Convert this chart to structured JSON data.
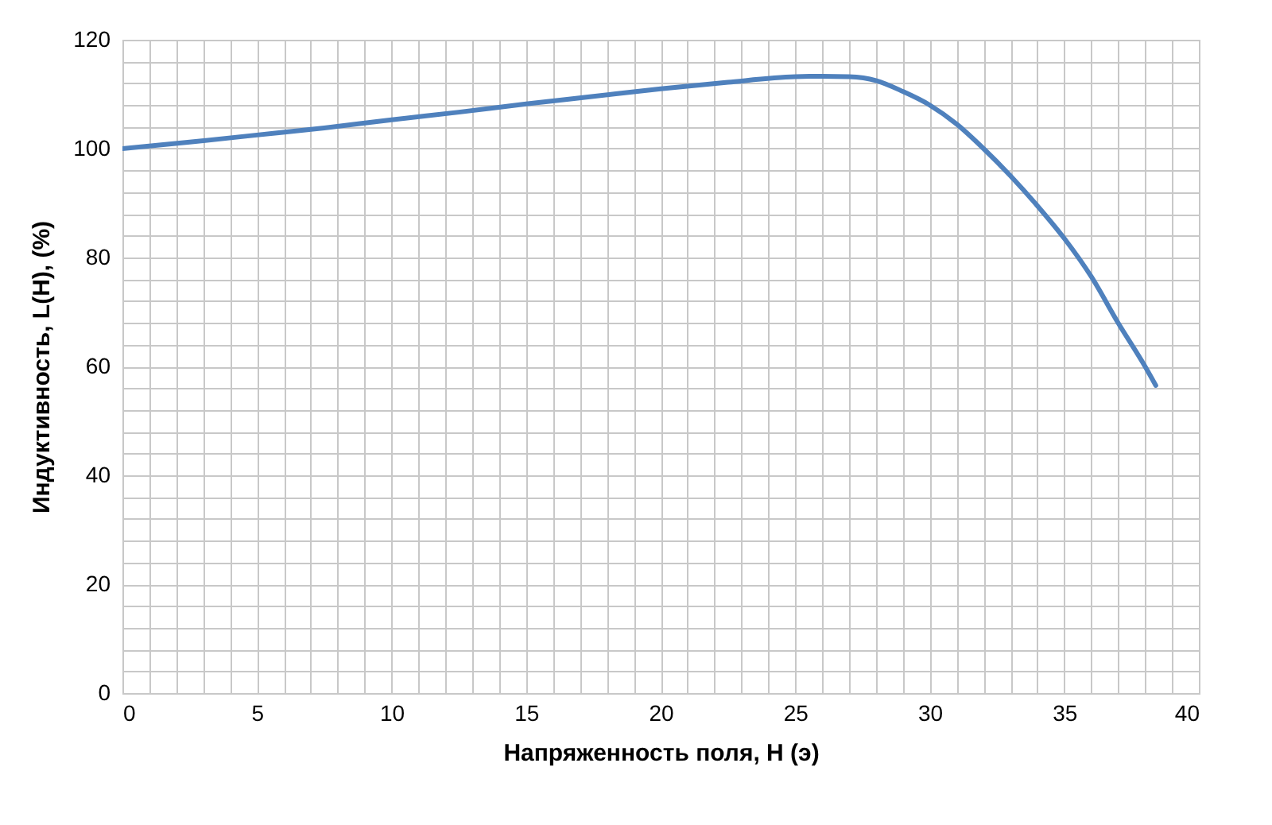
{
  "chart_data": {
    "type": "line",
    "xlabel": "Напряженность поля, H (э)",
    "ylabel": "Индуктивность, L(H), (%)",
    "x": [
      0,
      2.5,
      5,
      7.5,
      10,
      12.5,
      15,
      17.5,
      20,
      22.5,
      25,
      26,
      27,
      28,
      29,
      30,
      31,
      32,
      33,
      34,
      35,
      36,
      37,
      38,
      38.4
    ],
    "series": [
      {
        "color": "#4f81bd",
        "values": [
          100,
          101.2,
          102.5,
          103.8,
          105.3,
          106.7,
          108.2,
          109.6,
          111,
          112.2,
          113.2,
          113.3,
          113.2,
          112.5,
          110.5,
          108,
          104.5,
          100,
          95,
          89.5,
          83.5,
          76.5,
          68,
          60,
          56.5
        ]
      }
    ],
    "xlim": [
      0,
      40
    ],
    "ylim": [
      0,
      120
    ],
    "xticks": [
      0,
      {
        "value": 1,
        "label": null
      },
      {
        "value": 2,
        "label": null
      },
      {
        "value": 3,
        "label": null
      },
      {
        "value": 4,
        "label": null
      },
      5,
      {
        "value": 6,
        "label": null
      },
      {
        "value": 7,
        "label": null
      },
      {
        "value": 8,
        "label": null
      },
      {
        "value": 9,
        "label": null
      },
      10,
      {
        "value": 11,
        "label": null
      },
      {
        "value": 12,
        "label": null
      },
      {
        "value": 13,
        "label": null
      },
      {
        "value": 14,
        "label": null
      },
      15,
      {
        "value": 16,
        "label": null
      },
      {
        "value": 17,
        "label": null
      },
      {
        "value": 18,
        "label": null
      },
      {
        "value": 19,
        "label": null
      },
      20,
      {
        "value": 21,
        "label": null
      },
      {
        "value": 22,
        "label": null
      },
      {
        "value": 23,
        "label": null
      },
      {
        "value": 24,
        "label": null
      },
      25,
      {
        "value": 26,
        "label": null
      },
      {
        "value": 27,
        "label": null
      },
      {
        "value": 28,
        "label": null
      },
      {
        "value": 29,
        "label": null
      },
      30,
      {
        "value": 31,
        "label": null
      },
      {
        "value": 32,
        "label": null
      },
      {
        "value": 33,
        "label": null
      },
      {
        "value": 34,
        "label": null
      },
      35,
      {
        "value": 36,
        "label": null
      },
      {
        "value": 37,
        "label": null
      },
      {
        "value": 38,
        "label": null
      },
      {
        "value": 39,
        "label": null
      },
      40
    ],
    "yticks": [
      0,
      {
        "value": 4,
        "label": null
      },
      {
        "value": 8,
        "label": null
      },
      {
        "value": 12,
        "label": null
      },
      {
        "value": 16,
        "label": null
      },
      20,
      {
        "value": 24,
        "label": null
      },
      {
        "value": 28,
        "label": null
      },
      {
        "value": 32,
        "label": null
      },
      {
        "value": 36,
        "label": null
      },
      40,
      {
        "value": 44,
        "label": null
      },
      {
        "value": 48,
        "label": null
      },
      {
        "value": 52,
        "label": null
      },
      {
        "value": 56,
        "label": null
      },
      60,
      {
        "value": 64,
        "label": null
      },
      {
        "value": 68,
        "label": null
      },
      {
        "value": 72,
        "label": null
      },
      {
        "value": 76,
        "label": null
      },
      80,
      {
        "value": 84,
        "label": null
      },
      {
        "value": 88,
        "label": null
      },
      {
        "value": 92,
        "label": null
      },
      {
        "value": 96,
        "label": null
      },
      100,
      {
        "value": 104,
        "label": null
      },
      {
        "value": 108,
        "label": null
      },
      {
        "value": 112,
        "label": null
      },
      {
        "value": 116,
        "label": null
      },
      120
    ],
    "grid": true,
    "marker": "none",
    "line_style": "solid"
  }
}
